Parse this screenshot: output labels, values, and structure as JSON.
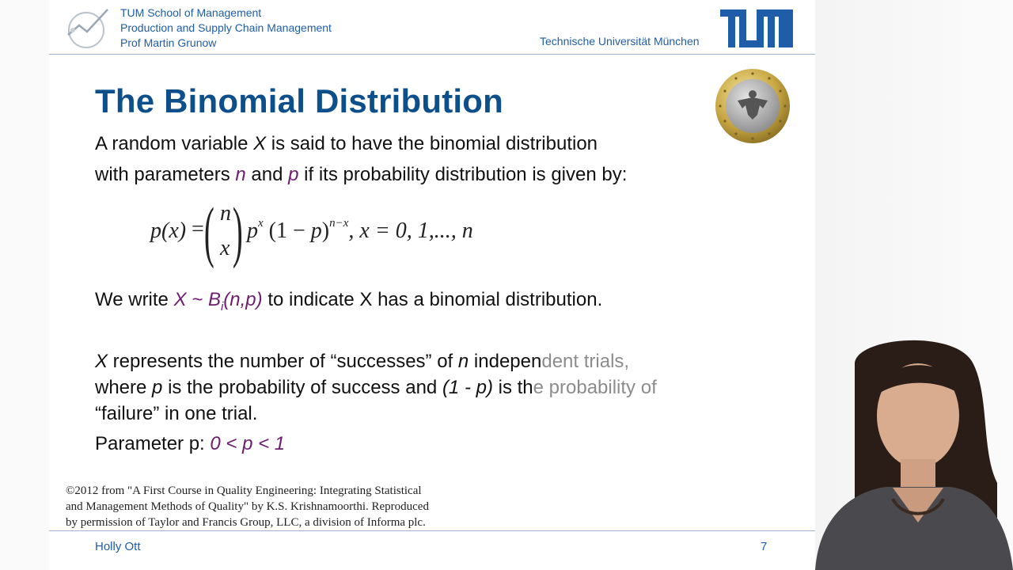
{
  "header": {
    "line1": "TUM School of Management",
    "line2": "Production and Supply Chain Management",
    "line3": "Prof Martin Grunow",
    "university": "Technische Universität München",
    "logo_text": "TUM"
  },
  "slide": {
    "title": "The Binomial Distribution",
    "intro_1": {
      "a": "A random variable ",
      "X": "X",
      "b": " is said to have the binomial distribution"
    },
    "intro_2": {
      "a": "with parameters ",
      "n": "n",
      "and": " and ",
      "p": "p",
      "b": " if its probability distribution is given by:"
    },
    "formula": {
      "lhs": "p(x)",
      "eq": "=",
      "binom_top": "n",
      "binom_bottom": "x",
      "p": "p",
      "exp1": "x",
      "paren_open": "(1 − ",
      "p2": "p",
      "paren_close": ")",
      "exp2": "n−x",
      "range": ", x = 0, 1,..., n"
    },
    "write": {
      "a": "We write ",
      "notation": "X ~ B",
      "sub": "i",
      "args": "(n,p)",
      "b": " to indicate X has a binomial distribution."
    },
    "represents_1": {
      "X": "X",
      "a": " represents the number of “successes” of ",
      "n": "n",
      "b": " indepen",
      "c": "dent trials,"
    },
    "represents_2": {
      "a": "where ",
      "p": "p",
      "b": " is the probability of success and ",
      "q": "(1 - p)",
      "c": " is th",
      "d": "e probability of"
    },
    "represents_3": "“failure” in one trial.",
    "parameter": {
      "label": "Parameter p:  ",
      "range": "0 < p < 1"
    },
    "credit_1": "©2012 from \"A First Course in Quality Engineering: Integrating Statistical",
    "credit_2": "and Management Methods of Quality\" by K.S. Krishnamoorthi. Reproduced",
    "credit_3": "by permission of Taylor and Francis Group, LLC, a division of Informa plc."
  },
  "footer": {
    "name": "Holly Ott",
    "page": "7"
  },
  "colors": {
    "title_blue": "#0d4f8b",
    "header_blue": "#1f5da8",
    "math_purple": "#6d1d6f"
  },
  "icons": {
    "logo": "tum-school-of-management-logo",
    "coin": "euro-coin-eagle-icon"
  }
}
